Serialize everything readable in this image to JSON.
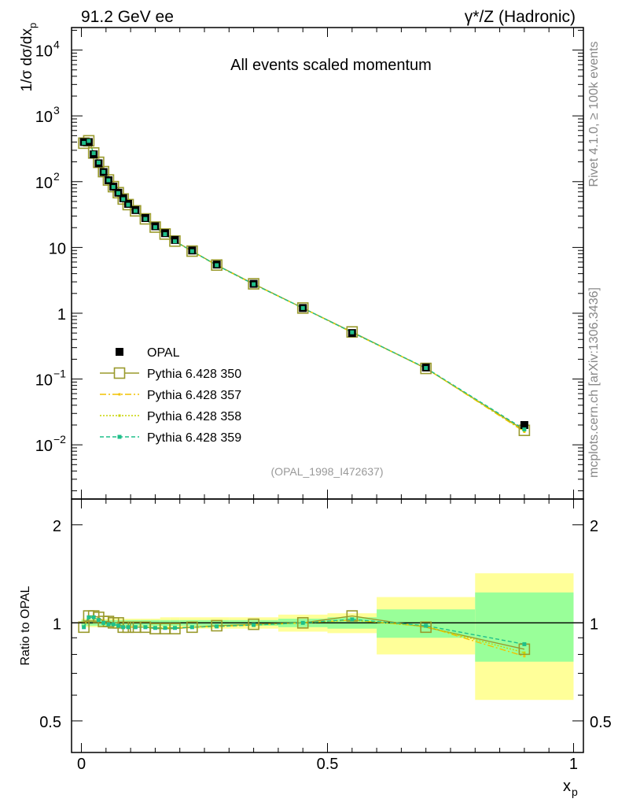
{
  "header": {
    "left_title": "91.2 GeV ee",
    "right_title": "γ*/Z (Hadronic)"
  },
  "side_labels": {
    "rivet": "Rivet 4.1.0, ≥ 100k events",
    "mcplots": "mcplots.cern.ch [arXiv:1306.3436]"
  },
  "chart_data": [
    {
      "type": "line",
      "yscale": "log",
      "title": "All events scaled momentum",
      "analysis_tag": "(OPAL_1998_I472637)",
      "xlabel": "x_p",
      "ylabel": "1/σ  dσ/dx_p",
      "xlim": [
        -0.02,
        1.02
      ],
      "ylim": [
        0.0015,
        22000
      ],
      "ytick_labels": [
        {
          "value": 10000,
          "base": "10",
          "exp": "4"
        },
        {
          "value": 1000,
          "base": "10",
          "exp": "3"
        },
        {
          "value": 100,
          "base": "10",
          "exp": "2"
        },
        {
          "value": 10,
          "base": "10",
          "exp": ""
        },
        {
          "value": 1,
          "base": "1",
          "exp": ""
        },
        {
          "value": 0.1,
          "base": "10",
          "exp": "−1"
        },
        {
          "value": 0.01,
          "base": "10",
          "exp": "−2"
        }
      ],
      "x": [
        0.005,
        0.015,
        0.025,
        0.035,
        0.045,
        0.055,
        0.065,
        0.075,
        0.085,
        0.095,
        0.11,
        0.13,
        0.15,
        0.17,
        0.19,
        0.225,
        0.275,
        0.35,
        0.45,
        0.55,
        0.7,
        0.9
      ],
      "legend": [
        {
          "name": "OPAL",
          "style": "data"
        },
        {
          "name": "Pythia 6.428 350",
          "style": "open-square"
        },
        {
          "name": "Pythia 6.428 357",
          "style": "dash-dot"
        },
        {
          "name": "Pythia 6.428 358",
          "style": "dotted"
        },
        {
          "name": "Pythia 6.428 359",
          "style": "dashed"
        }
      ],
      "series": [
        {
          "name": "OPAL",
          "color": "#000000",
          "values": [
            400,
            400,
            260,
            190,
            140,
            105,
            84,
            68,
            56,
            46,
            37,
            28,
            21,
            16.5,
            13,
            9.0,
            5.5,
            2.8,
            1.2,
            0.5,
            0.15,
            0.02
          ]
        },
        {
          "name": "Pythia 6.428 350",
          "color": "#9a9a2c",
          "values": [
            385,
            418,
            273,
            197,
            142,
            106,
            84,
            68,
            54.5,
            44.8,
            36,
            27.2,
            20.4,
            16,
            12.5,
            8.8,
            5.4,
            2.8,
            1.2,
            0.52,
            0.145,
            0.0166
          ]
        },
        {
          "name": "Pythia 6.428 357",
          "color": "#f2c200",
          "values": [
            387,
            416,
            272,
            196,
            141,
            105,
            83,
            67,
            54,
            44.5,
            35.8,
            27,
            20.3,
            15.9,
            12.4,
            8.75,
            5.35,
            2.76,
            1.2,
            0.51,
            0.146,
            0.0158
          ]
        },
        {
          "name": "Pythia 6.428 358",
          "color": "#c8d400",
          "values": [
            388,
            417,
            272,
            196,
            141,
            105,
            83,
            67,
            54,
            44.6,
            35.8,
            27,
            20.3,
            15.9,
            12.4,
            8.76,
            5.36,
            2.76,
            1.2,
            0.51,
            0.146,
            0.0162
          ]
        },
        {
          "name": "Pythia 6.428 359",
          "color": "#1fbf8a",
          "values": [
            388,
            416,
            271,
            195,
            141,
            105,
            83,
            67,
            54.2,
            44.6,
            35.9,
            27.1,
            20.3,
            15.9,
            12.4,
            8.77,
            5.37,
            2.76,
            1.2,
            0.513,
            0.147,
            0.0172
          ]
        }
      ]
    },
    {
      "type": "line",
      "yscale": "log",
      "title": "",
      "xlabel": "x_p",
      "ylabel": "Ratio to OPAL",
      "xlim": [
        -0.02,
        1.02
      ],
      "ylim": [
        0.4,
        2.4
      ],
      "ytick_labels": [
        {
          "value": 2,
          "label": "2"
        },
        {
          "value": 1,
          "label": "1"
        },
        {
          "value": 0.5,
          "label": "0.5"
        }
      ],
      "xtick_labels": [
        {
          "value": 0,
          "label": "0"
        },
        {
          "value": 0.5,
          "label": "0.5"
        },
        {
          "value": 1,
          "label": "1"
        }
      ],
      "uncertainty_bands": {
        "bin_edges": [
          0.0,
          0.01,
          0.02,
          0.03,
          0.04,
          0.05,
          0.06,
          0.07,
          0.08,
          0.09,
          0.1,
          0.12,
          0.14,
          0.16,
          0.18,
          0.2,
          0.25,
          0.3,
          0.4,
          0.5,
          0.6,
          0.8,
          1.0
        ],
        "inner_ratio": [
          0.02,
          0.02,
          0.02,
          0.02,
          0.02,
          0.02,
          0.02,
          0.02,
          0.02,
          0.02,
          0.02,
          0.02,
          0.02,
          0.02,
          0.02,
          0.02,
          0.02,
          0.02,
          0.03,
          0.04,
          0.1,
          0.24
        ],
        "outer_ratio": [
          0.03,
          0.03,
          0.03,
          0.03,
          0.03,
          0.03,
          0.03,
          0.03,
          0.03,
          0.03,
          0.03,
          0.03,
          0.03,
          0.04,
          0.04,
          0.04,
          0.04,
          0.04,
          0.06,
          0.07,
          0.2,
          0.42
        ],
        "inner_color": "#99ff99",
        "outer_color": "#ffff99"
      },
      "series": [
        {
          "name": "Pythia 6.428 350",
          "color": "#9a9a2c",
          "values": [
            0.97,
            1.05,
            1.05,
            1.04,
            1.01,
            1.01,
            1.0,
            1.0,
            0.97,
            0.97,
            0.97,
            0.97,
            0.96,
            0.96,
            0.96,
            0.97,
            0.98,
            0.99,
            1.0,
            1.05,
            0.97,
            0.83
          ]
        },
        {
          "name": "Pythia 6.428 357",
          "color": "#f2c200",
          "values": [
            0.97,
            1.04,
            1.04,
            1.02,
            1.0,
            0.99,
            0.99,
            0.98,
            0.97,
            0.97,
            0.97,
            0.97,
            0.965,
            0.965,
            0.965,
            0.97,
            0.975,
            0.985,
            1.0,
            1.02,
            0.975,
            0.79
          ]
        },
        {
          "name": "Pythia 6.428 358",
          "color": "#c8d400",
          "values": [
            0.97,
            1.04,
            1.04,
            1.02,
            1.0,
            0.99,
            0.99,
            0.98,
            0.97,
            0.97,
            0.97,
            0.97,
            0.965,
            0.965,
            0.965,
            0.97,
            0.975,
            0.985,
            1.0,
            1.02,
            0.975,
            0.81
          ]
        },
        {
          "name": "Pythia 6.428 359",
          "color": "#1fbf8a",
          "values": [
            0.97,
            1.04,
            1.04,
            1.02,
            1.0,
            0.99,
            0.99,
            0.98,
            0.97,
            0.97,
            0.97,
            0.97,
            0.965,
            0.965,
            0.965,
            0.97,
            0.975,
            0.985,
            1.0,
            1.025,
            0.98,
            0.86
          ]
        }
      ]
    }
  ]
}
